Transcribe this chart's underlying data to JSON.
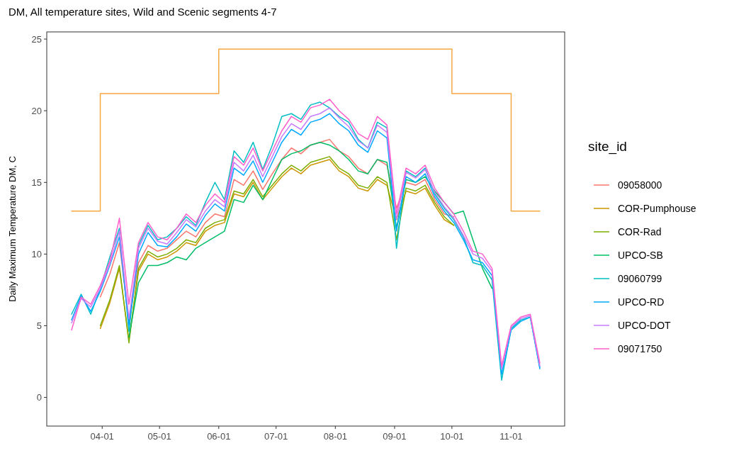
{
  "chart_data": {
    "type": "line",
    "title": "DM, All temperature sites, Wild and Scenic segments 4-7",
    "ylabel": "Daily Maximum Temperature DM, C",
    "legend_title": "site_id",
    "legend": "right",
    "grid": false,
    "x": [
      "--03-16",
      "--03-21",
      "--03-26",
      "--03-31",
      "--04-05",
      "--04-10",
      "--04-15",
      "--04-20",
      "--04-25",
      "--04-30",
      "--05-05",
      "--05-10",
      "--05-15",
      "--05-20",
      "--05-25",
      "--05-30",
      "--06-04",
      "--06-09",
      "--06-14",
      "--06-19",
      "--06-24",
      "--06-29",
      "--07-04",
      "--07-09",
      "--07-14",
      "--07-19",
      "--07-24",
      "--07-29",
      "--08-03",
      "--08-08",
      "--08-13",
      "--08-18",
      "--08-23",
      "--08-28",
      "--09-02",
      "--09-07",
      "--09-12",
      "--09-17",
      "--09-22",
      "--09-27",
      "--10-02",
      "--10-07",
      "--10-12",
      "--10-17",
      "--10-22",
      "--10-27",
      "--11-01",
      "--11-06",
      "--11-11",
      "--11-16"
    ],
    "xlim": [
      "--03-03",
      "--11-29"
    ],
    "xticks": [
      {
        "value": "--04-01",
        "label": "04-01"
      },
      {
        "value": "--05-01",
        "label": "05-01"
      },
      {
        "value": "--06-01",
        "label": "06-01"
      },
      {
        "value": "--07-01",
        "label": "07-01"
      },
      {
        "value": "--08-01",
        "label": "08-01"
      },
      {
        "value": "--09-01",
        "label": "09-01"
      },
      {
        "value": "--10-01",
        "label": "10-01"
      },
      {
        "value": "--11-01",
        "label": "11-01"
      }
    ],
    "ylim": [
      -2,
      25.5
    ],
    "yticks": [
      0,
      5,
      10,
      15,
      20,
      25
    ],
    "series": [
      {
        "type": "step",
        "color": "#f5a742",
        "x": [
          "--03-16",
          "--03-31",
          "--06-01",
          "--10-01",
          "--11-01",
          "--11-16"
        ],
        "values": [
          13,
          21.2,
          24.3,
          21.2,
          13,
          13
        ]
      },
      {
        "name": "09058000",
        "color": "#f8766d",
        "values": [
          null,
          null,
          null,
          7.0,
          8.6,
          10.8,
          5.2,
          9.4,
          10.6,
          10.2,
          10.4,
          11.0,
          11.6,
          11.2,
          12.2,
          12.8,
          12.6,
          15.2,
          14.8,
          15.8,
          14.5,
          15.6,
          16.6,
          17.4,
          17.0,
          17.6,
          17.8,
          18.0,
          17.2,
          16.8,
          16.0,
          15.6,
          16.6,
          16.2,
          13.2,
          15.0,
          14.8,
          15.2,
          13.8,
          12.8,
          12.6,
          null,
          null,
          null,
          null,
          null,
          null,
          null,
          null,
          null
        ]
      },
      {
        "name": "COR-Pumphouse",
        "color": "#cd9600",
        "values": [
          null,
          null,
          null,
          4.8,
          6.6,
          9.0,
          4.0,
          8.8,
          10.0,
          9.6,
          9.8,
          10.2,
          10.8,
          10.6,
          11.6,
          12.0,
          12.2,
          14.2,
          14.0,
          15.0,
          13.8,
          14.6,
          15.4,
          16.0,
          15.6,
          16.2,
          16.4,
          16.6,
          15.8,
          15.4,
          14.6,
          14.4,
          15.2,
          14.8,
          12.4,
          14.4,
          14.2,
          14.6,
          13.4,
          12.4,
          12.0,
          null,
          null,
          null,
          null,
          null,
          null,
          null,
          null,
          null
        ]
      },
      {
        "name": "COR-Rad",
        "color": "#7cae00",
        "values": [
          null,
          null,
          null,
          5.0,
          6.8,
          9.2,
          3.8,
          9.0,
          10.2,
          9.8,
          10.0,
          10.4,
          11.0,
          10.8,
          11.8,
          12.2,
          12.4,
          14.4,
          14.2,
          15.2,
          14.0,
          14.8,
          15.6,
          16.2,
          15.8,
          16.4,
          16.6,
          16.8,
          16.0,
          15.6,
          14.8,
          14.6,
          15.4,
          15.0,
          11.0,
          14.6,
          14.4,
          14.8,
          13.6,
          12.6,
          12.0,
          null,
          null,
          null,
          null,
          null,
          null,
          null,
          null,
          null
        ]
      },
      {
        "name": "UPCO-SB",
        "color": "#00be67",
        "values": [
          null,
          null,
          null,
          null,
          null,
          null,
          4.2,
          8.0,
          9.2,
          9.2,
          9.4,
          9.8,
          9.6,
          10.4,
          10.8,
          11.2,
          11.6,
          13.8,
          13.6,
          14.8,
          13.8,
          15.2,
          16.6,
          17.0,
          17.2,
          17.6,
          17.8,
          17.6,
          17.2,
          16.6,
          15.8,
          15.6,
          16.6,
          16.4,
          11.8,
          15.2,
          15.0,
          15.4,
          14.4,
          13.6,
          12.8,
          13.0,
          11.0,
          9.0,
          7.6,
          null,
          null,
          null,
          null,
          null
        ]
      },
      {
        "name": "09060799",
        "color": "#00bfc4",
        "values": [
          5.8,
          7.2,
          5.8,
          7.6,
          9.8,
          11.8,
          4.6,
          10.6,
          12.0,
          11.0,
          11.2,
          11.8,
          12.6,
          12.0,
          13.6,
          15.0,
          13.8,
          17.2,
          16.4,
          17.8,
          15.9,
          17.6,
          19.6,
          19.8,
          19.4,
          20.4,
          20.6,
          20.2,
          19.6,
          19.2,
          18.0,
          17.4,
          19.2,
          18.8,
          10.4,
          15.8,
          15.4,
          16.0,
          14.2,
          13.2,
          12.4,
          11.2,
          9.4,
          9.2,
          8.2,
          1.2,
          4.8,
          5.4,
          5.6,
          2.1
        ]
      },
      {
        "name": "UPCO-RD",
        "color": "#00a9ff",
        "values": [
          5.4,
          7.1,
          6.0,
          7.4,
          9.2,
          11.2,
          5.0,
          10.0,
          11.5,
          10.6,
          10.5,
          11.2,
          12.1,
          11.6,
          12.7,
          13.5,
          13.0,
          16.0,
          15.5,
          16.5,
          15.0,
          16.4,
          17.8,
          18.7,
          18.3,
          19.2,
          19.4,
          19.8,
          19.1,
          18.6,
          17.6,
          17.1,
          18.6,
          18.1,
          11.6,
          15.4,
          15.0,
          15.6,
          14.0,
          13.0,
          12.2,
          11.0,
          9.6,
          9.4,
          8.5,
          1.6,
          4.7,
          5.3,
          5.6,
          2.0
        ]
      },
      {
        "name": "UPCO-DOT",
        "color": "#c77cff",
        "values": [
          5.2,
          6.9,
          6.3,
          7.6,
          9.3,
          11.6,
          5.5,
          10.4,
          11.8,
          10.9,
          10.7,
          11.5,
          12.4,
          11.9,
          13.0,
          13.8,
          13.3,
          16.4,
          15.8,
          16.9,
          15.4,
          16.8,
          18.2,
          19.1,
          18.7,
          19.6,
          19.8,
          20.2,
          19.5,
          18.9,
          17.9,
          17.4,
          19.0,
          18.5,
          12.4,
          15.7,
          15.3,
          15.9,
          14.3,
          13.3,
          12.5,
          11.3,
          10.0,
          9.7,
          8.8,
          2.0,
          4.9,
          5.5,
          5.7,
          2.2
        ]
      },
      {
        "name": "09071750",
        "color": "#ff61cc",
        "values": [
          4.7,
          7.0,
          6.5,
          7.8,
          9.5,
          12.5,
          6.5,
          10.8,
          12.2,
          11.2,
          11.0,
          11.8,
          12.8,
          12.2,
          13.4,
          14.2,
          13.6,
          16.8,
          16.2,
          17.4,
          15.8,
          17.2,
          18.6,
          19.6,
          19.2,
          20.2,
          20.4,
          20.8,
          20.0,
          19.4,
          18.4,
          18.0,
          19.6,
          19.0,
          12.8,
          16.0,
          15.6,
          16.2,
          14.6,
          13.6,
          12.8,
          11.6,
          10.2,
          10.0,
          9.0,
          2.2,
          5.0,
          5.6,
          5.8,
          2.4
        ]
      }
    ]
  }
}
